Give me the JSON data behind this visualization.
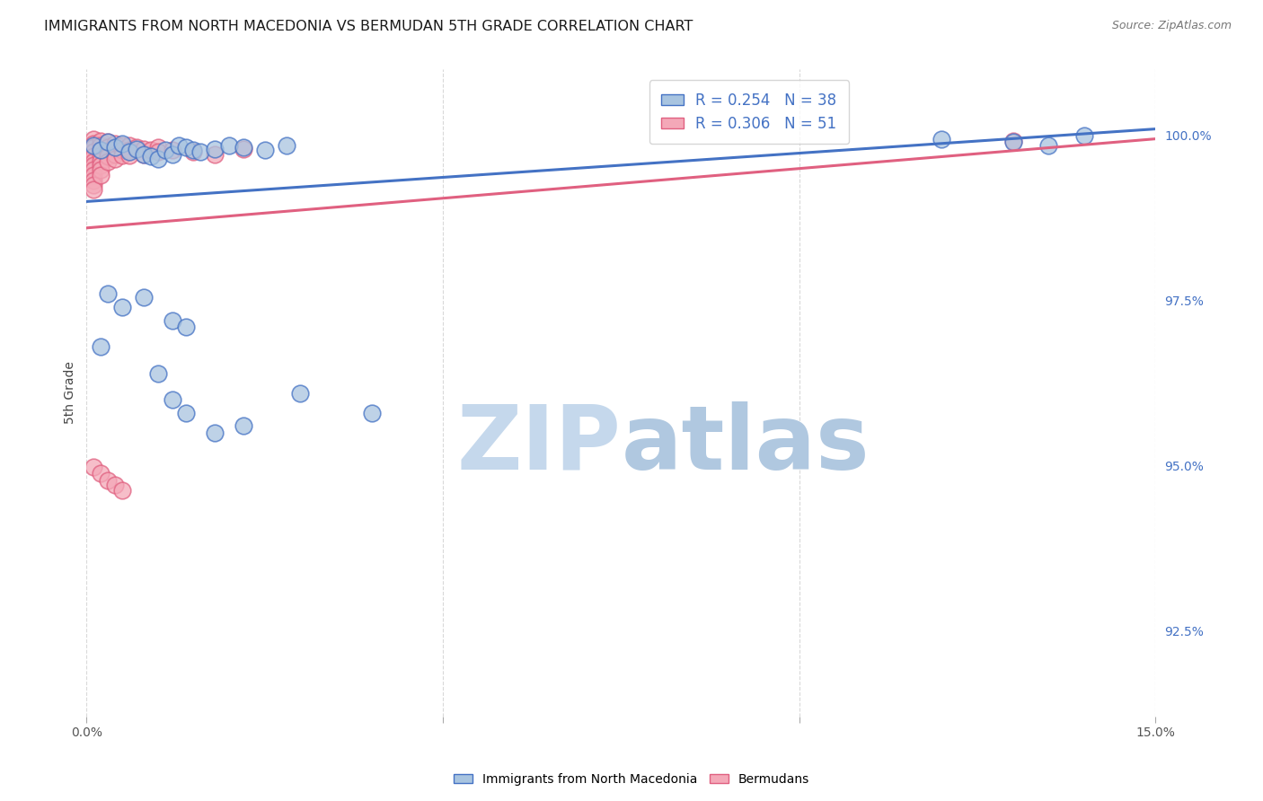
{
  "title": "IMMIGRANTS FROM NORTH MACEDONIA VS BERMUDAN 5TH GRADE CORRELATION CHART",
  "source": "Source: ZipAtlas.com",
  "ylabel": "5th Grade",
  "ylabel_right_labels": [
    "100.0%",
    "97.5%",
    "95.0%",
    "92.5%"
  ],
  "ylabel_right_values": [
    1.0,
    0.975,
    0.95,
    0.925
  ],
  "xmin": 0.0,
  "xmax": 0.15,
  "ymin": 0.912,
  "ymax": 1.01,
  "blue_label": "Immigrants from North Macedonia",
  "pink_label": "Bermudans",
  "blue_R": 0.254,
  "blue_N": 38,
  "pink_R": 0.306,
  "pink_N": 51,
  "blue_color": "#a8c4e0",
  "pink_color": "#f4a8b8",
  "blue_line_color": "#4472c4",
  "pink_line_color": "#e06080",
  "blue_scatter": [
    [
      0.001,
      0.9985
    ],
    [
      0.002,
      0.9978
    ],
    [
      0.003,
      0.999
    ],
    [
      0.004,
      0.9982
    ],
    [
      0.005,
      0.9988
    ],
    [
      0.006,
      0.9975
    ],
    [
      0.007,
      0.998
    ],
    [
      0.008,
      0.9972
    ],
    [
      0.009,
      0.9968
    ],
    [
      0.01,
      0.9965
    ],
    [
      0.011,
      0.9978
    ],
    [
      0.012,
      0.9972
    ],
    [
      0.013,
      0.9985
    ],
    [
      0.014,
      0.9982
    ],
    [
      0.015,
      0.9978
    ],
    [
      0.016,
      0.9975
    ],
    [
      0.018,
      0.998
    ],
    [
      0.02,
      0.9985
    ],
    [
      0.022,
      0.9982
    ],
    [
      0.025,
      0.9978
    ],
    [
      0.028,
      0.9985
    ],
    [
      0.003,
      0.976
    ],
    [
      0.005,
      0.974
    ],
    [
      0.008,
      0.9755
    ],
    [
      0.012,
      0.972
    ],
    [
      0.014,
      0.971
    ],
    [
      0.002,
      0.968
    ],
    [
      0.01,
      0.964
    ],
    [
      0.012,
      0.96
    ],
    [
      0.014,
      0.958
    ],
    [
      0.018,
      0.955
    ],
    [
      0.022,
      0.956
    ],
    [
      0.03,
      0.961
    ],
    [
      0.04,
      0.958
    ],
    [
      0.12,
      0.9995
    ],
    [
      0.13,
      0.999
    ],
    [
      0.14,
      1.0
    ],
    [
      0.135,
      0.9985
    ]
  ],
  "pink_scatter": [
    [
      0.001,
      0.9995
    ],
    [
      0.001,
      0.9988
    ],
    [
      0.001,
      0.9982
    ],
    [
      0.001,
      0.9975
    ],
    [
      0.001,
      0.9968
    ],
    [
      0.001,
      0.996
    ],
    [
      0.001,
      0.9955
    ],
    [
      0.001,
      0.9948
    ],
    [
      0.001,
      0.994
    ],
    [
      0.001,
      0.9932
    ],
    [
      0.001,
      0.9925
    ],
    [
      0.001,
      0.9918
    ],
    [
      0.002,
      0.9992
    ],
    [
      0.002,
      0.9985
    ],
    [
      0.002,
      0.9978
    ],
    [
      0.002,
      0.997
    ],
    [
      0.002,
      0.9962
    ],
    [
      0.002,
      0.9955
    ],
    [
      0.002,
      0.9948
    ],
    [
      0.002,
      0.994
    ],
    [
      0.003,
      0.999
    ],
    [
      0.003,
      0.9982
    ],
    [
      0.003,
      0.9975
    ],
    [
      0.003,
      0.9968
    ],
    [
      0.003,
      0.996
    ],
    [
      0.004,
      0.9988
    ],
    [
      0.004,
      0.998
    ],
    [
      0.004,
      0.9972
    ],
    [
      0.004,
      0.9965
    ],
    [
      0.005,
      0.9985
    ],
    [
      0.005,
      0.9978
    ],
    [
      0.005,
      0.997
    ],
    [
      0.006,
      0.9985
    ],
    [
      0.006,
      0.9978
    ],
    [
      0.006,
      0.997
    ],
    [
      0.007,
      0.9982
    ],
    [
      0.008,
      0.998
    ],
    [
      0.008,
      0.9972
    ],
    [
      0.009,
      0.9978
    ],
    [
      0.01,
      0.9982
    ],
    [
      0.01,
      0.9975
    ],
    [
      0.012,
      0.9978
    ],
    [
      0.015,
      0.9975
    ],
    [
      0.018,
      0.9972
    ],
    [
      0.022,
      0.998
    ],
    [
      0.001,
      0.9498
    ],
    [
      0.002,
      0.9488
    ],
    [
      0.003,
      0.9478
    ],
    [
      0.004,
      0.947
    ],
    [
      0.005,
      0.9462
    ],
    [
      0.13,
      0.9992
    ]
  ],
  "blue_trendline_x": [
    0.0,
    0.15
  ],
  "blue_trendline_y": [
    0.99,
    1.001
  ],
  "pink_trendline_x": [
    0.0,
    0.15
  ],
  "pink_trendline_y": [
    0.986,
    0.9995
  ],
  "watermark_zip_color": "#c5d8ec",
  "watermark_atlas_color": "#b0c8e0",
  "background_color": "#ffffff",
  "grid_color": "#d0d0d0",
  "title_fontsize": 11.5,
  "axis_fontsize": 9,
  "legend_fontsize": 12
}
